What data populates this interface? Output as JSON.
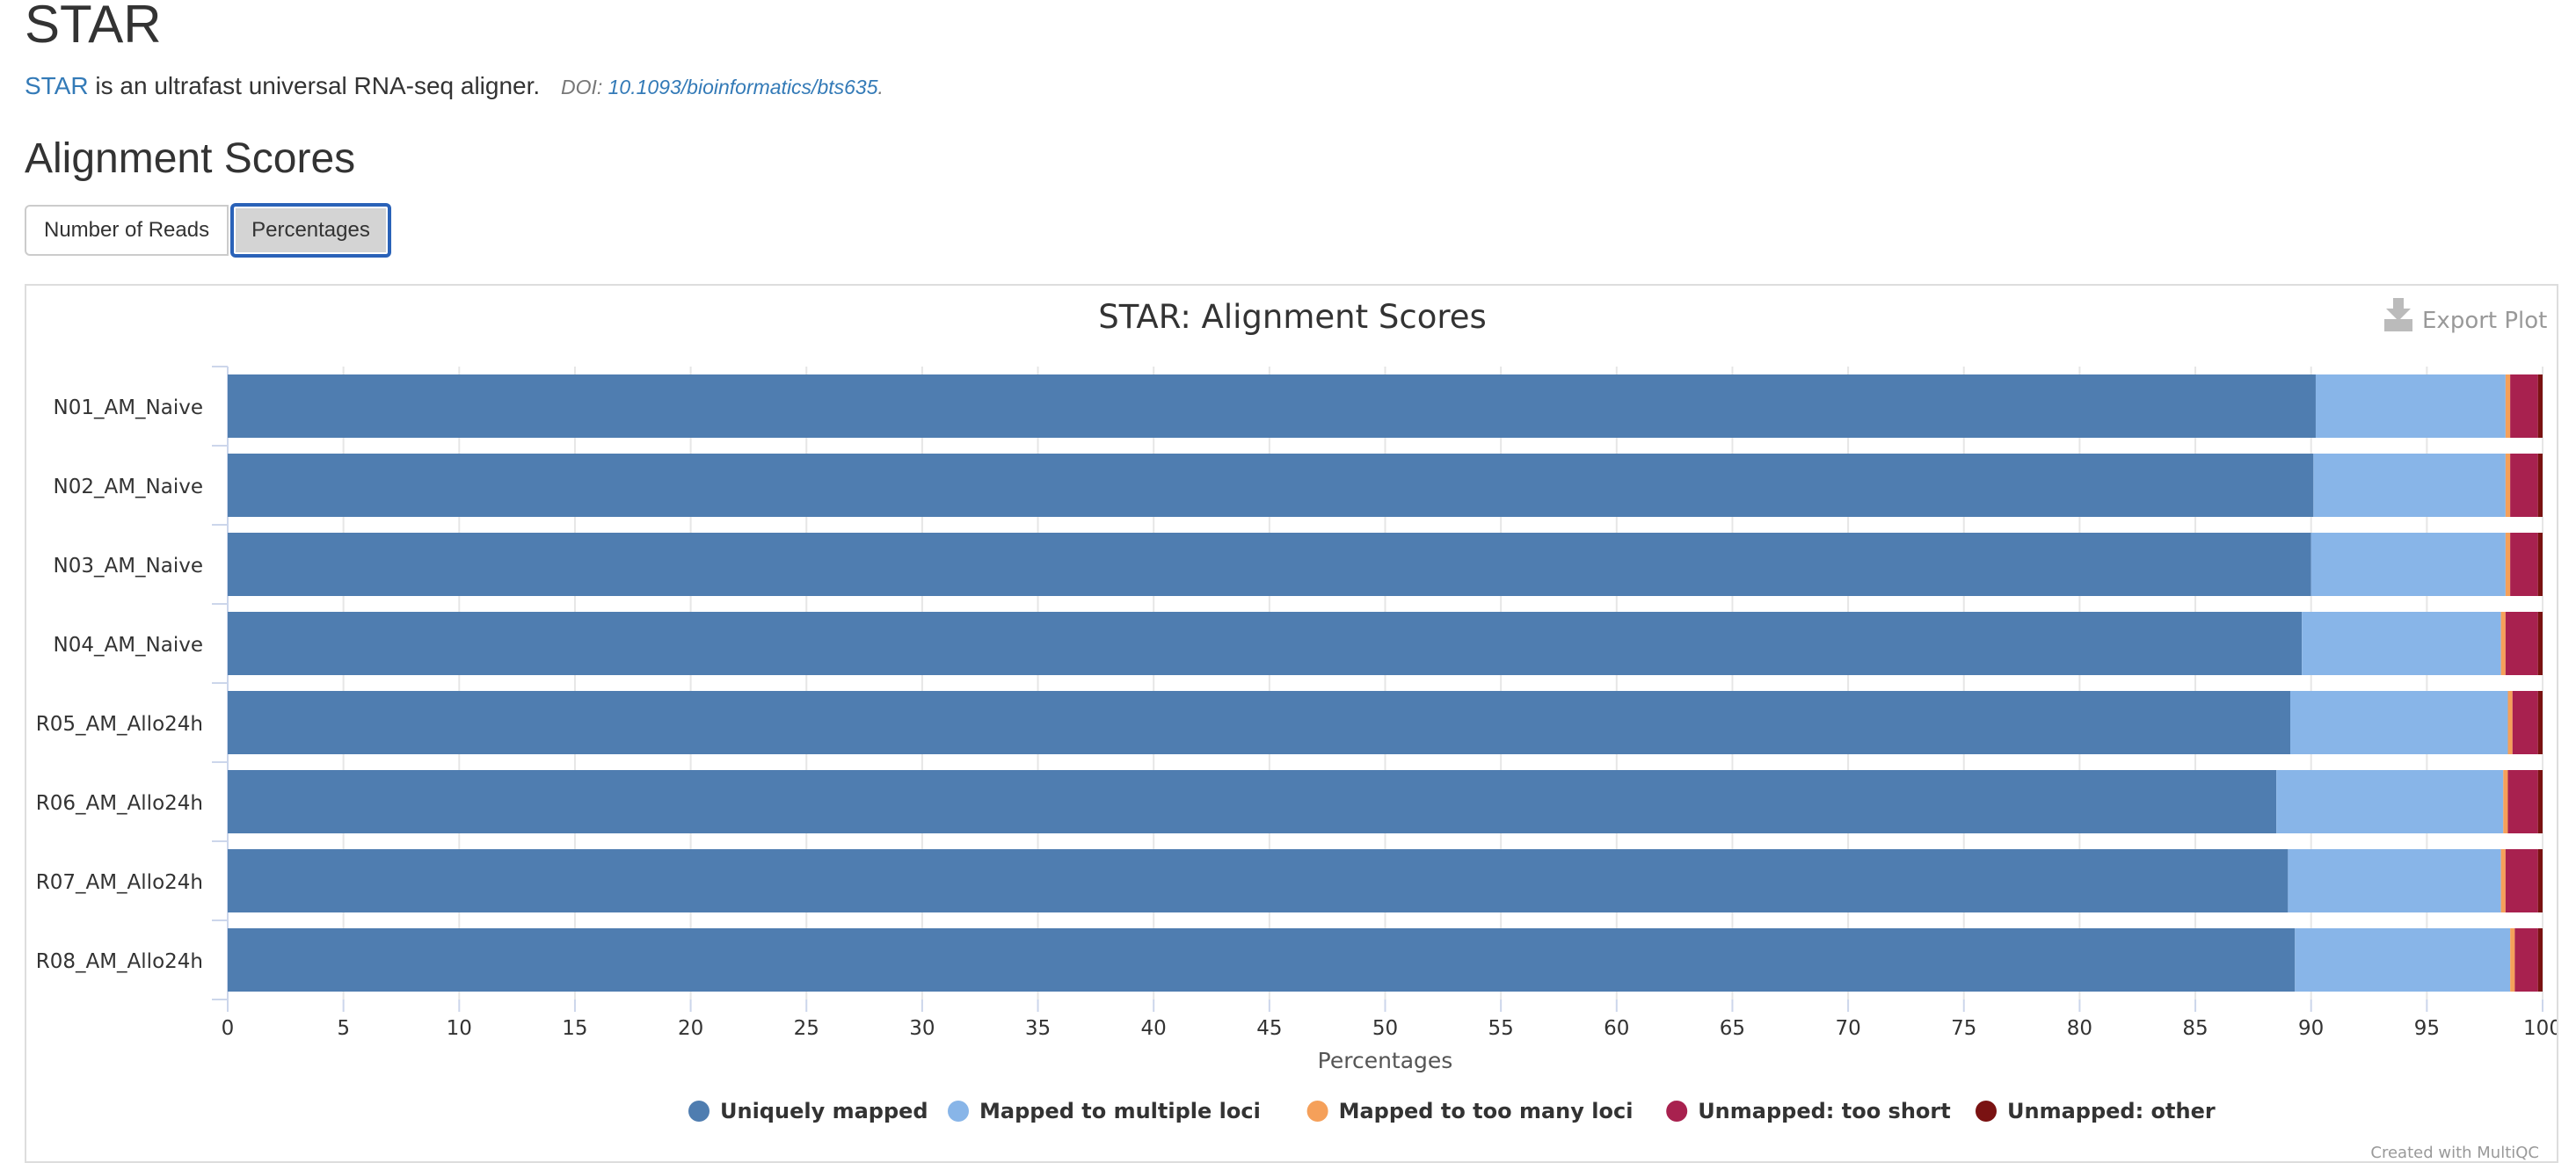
{
  "page": {
    "title": "STAR",
    "intro_link": "STAR",
    "intro_text": " is an ultrafast universal RNA-seq aligner.",
    "doi_label": "DOI: ",
    "doi_link": "10.1093/bioinformatics/bts635",
    "doi_suffix": ".",
    "section_title": "Alignment Scores"
  },
  "toolbar": {
    "reads_label": "Number of Reads",
    "percent_label": "Percentages"
  },
  "plot": {
    "export_label": "Export Plot",
    "credit": "Created with MultiQC"
  },
  "chart_data": {
    "type": "bar",
    "orientation": "horizontal",
    "stacked": true,
    "title": "STAR: Alignment Scores",
    "xlabel": "Percentages",
    "ylabel": "",
    "xlim": [
      0,
      100
    ],
    "xticks": [
      0,
      5,
      10,
      15,
      20,
      25,
      30,
      35,
      40,
      45,
      50,
      55,
      60,
      65,
      70,
      75,
      80,
      85,
      90,
      95,
      100
    ],
    "legend_position": "bottom",
    "grid": true,
    "categories": [
      "N01_AM_Naive",
      "N02_AM_Naive",
      "N03_AM_Naive",
      "N04_AM_Naive",
      "R05_AM_Allo24h",
      "R06_AM_Allo24h",
      "R07_AM_Allo24h",
      "R08_AM_Allo24h"
    ],
    "series": [
      {
        "name": "Uniquely mapped",
        "color": "#4f7db0",
        "values": [
          90.2,
          90.1,
          90.0,
          89.6,
          89.1,
          88.5,
          89.0,
          89.3
        ]
      },
      {
        "name": "Mapped to multiple loci",
        "color": "#88b5e8",
        "values": [
          8.2,
          8.3,
          8.4,
          8.6,
          9.4,
          9.8,
          9.2,
          9.3
        ]
      },
      {
        "name": "Mapped to too many loci",
        "color": "#f5a05a",
        "values": [
          0.2,
          0.2,
          0.2,
          0.2,
          0.2,
          0.2,
          0.2,
          0.2
        ]
      },
      {
        "name": "Unmapped: too short",
        "color": "#a8214f",
        "values": [
          1.2,
          1.2,
          1.2,
          1.4,
          1.1,
          1.3,
          1.4,
          1.0
        ]
      },
      {
        "name": "Unmapped: other",
        "color": "#7a1212",
        "values": [
          0.2,
          0.2,
          0.2,
          0.2,
          0.2,
          0.2,
          0.2,
          0.2
        ]
      }
    ]
  }
}
